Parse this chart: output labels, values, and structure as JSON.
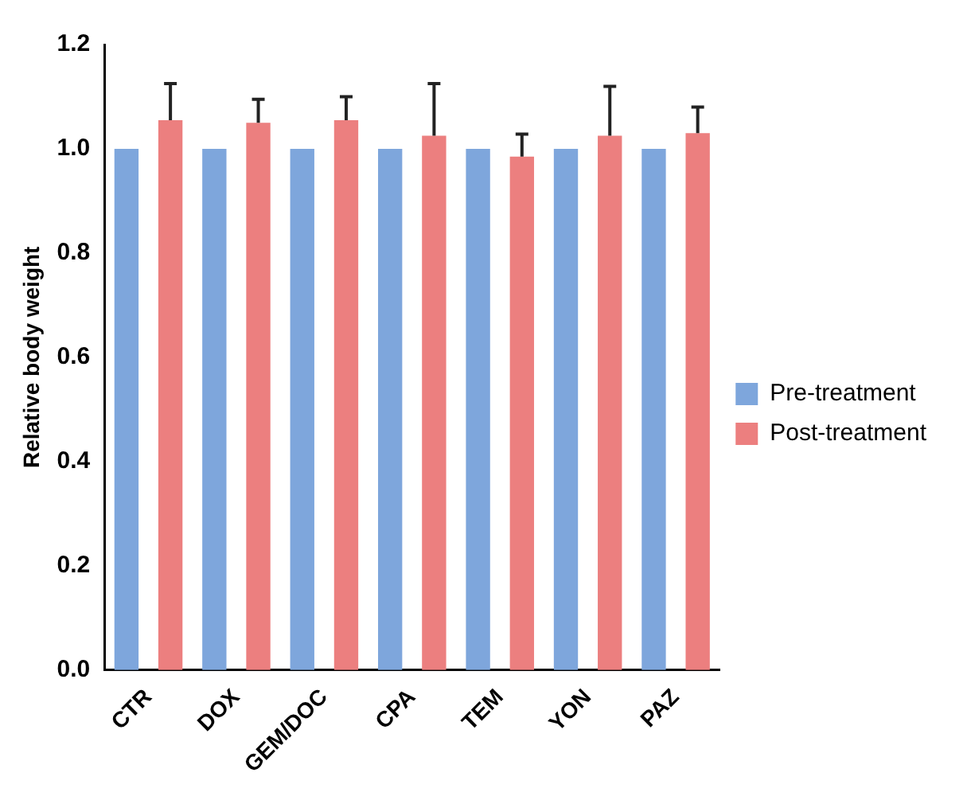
{
  "chart_data": {
    "type": "bar",
    "ylabel": "Relative body weight",
    "categories": [
      "CTR",
      "DOX",
      "GEM/DOC",
      "CPA",
      "TEM",
      "YON",
      "PAZ"
    ],
    "series": [
      {
        "name": "Pre-treatment",
        "color": "#7ea6dc",
        "values": [
          1.0,
          1.0,
          1.0,
          1.0,
          1.0,
          1.0,
          1.0
        ]
      },
      {
        "name": "Post-treatment",
        "color": "#ec7f7f",
        "values": [
          1.055,
          1.05,
          1.055,
          1.025,
          0.985,
          1.025,
          1.03
        ],
        "errors": [
          [
            1.055,
            1.125
          ],
          [
            1.05,
            1.095
          ],
          [
            1.055,
            1.1
          ],
          [
            1.025,
            1.125
          ],
          [
            0.985,
            1.028
          ],
          [
            1.025,
            1.12
          ],
          [
            1.03,
            1.08
          ]
        ]
      }
    ],
    "ylim": [
      0,
      1.2
    ],
    "yticks": [
      {
        "value": 0,
        "label": "0.0"
      },
      {
        "value": 0.2,
        "label": "0.2"
      },
      {
        "value": 0.4,
        "label": "0.4"
      },
      {
        "value": 0.6,
        "label": "0.6"
      },
      {
        "value": 0.8,
        "label": "0.8"
      },
      {
        "value": 1,
        "label": "1.0"
      },
      {
        "value": 1.2,
        "label": "1.2"
      }
    ],
    "grid": false,
    "legend": "right"
  }
}
